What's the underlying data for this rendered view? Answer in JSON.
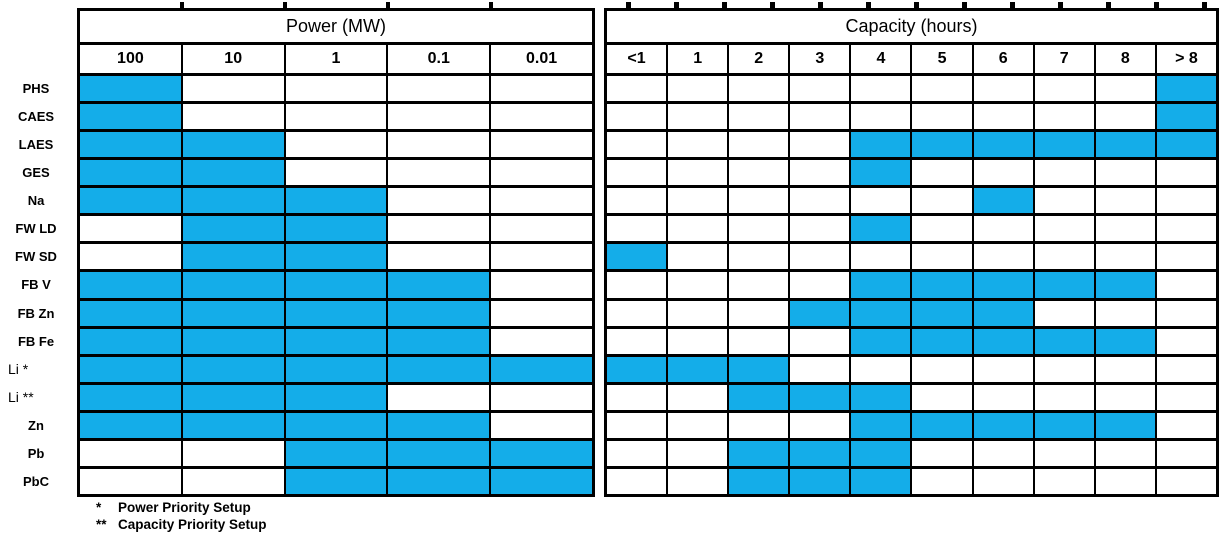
{
  "figure": {
    "colors": {
      "fill": "#14ade9",
      "line": "#000000",
      "background": "#ffffff"
    },
    "footnotes": [
      {
        "marker": "*",
        "text": "Power Priority Setup"
      },
      {
        "marker": "**",
        "text": "Capacity Priority Setup"
      }
    ]
  },
  "chart_data": {
    "type": "heatmap",
    "description": "Applicability matrix of energy storage technologies: filled (blue) cells mark the power ratings and storage durations each technology covers.",
    "column_groups": [
      {
        "title": "Power (MW)",
        "columns": [
          "100",
          "10",
          "1",
          "0.1",
          "0.01"
        ]
      },
      {
        "title": "Capacity (hours)",
        "columns": [
          "<1",
          "1",
          "2",
          "3",
          "4",
          "5",
          "6",
          "7",
          "8",
          "> 8"
        ]
      }
    ],
    "rows": [
      {
        "label": "PHS",
        "power": [
          1,
          0,
          0,
          0,
          0
        ],
        "capacity": [
          0,
          0,
          0,
          0,
          0,
          0,
          0,
          0,
          0,
          1
        ]
      },
      {
        "label": "CAES",
        "power": [
          1,
          0,
          0,
          0,
          0
        ],
        "capacity": [
          0,
          0,
          0,
          0,
          0,
          0,
          0,
          0,
          0,
          1
        ]
      },
      {
        "label": "LAES",
        "power": [
          1,
          1,
          0,
          0,
          0
        ],
        "capacity": [
          0,
          0,
          0,
          0,
          1,
          1,
          1,
          1,
          1,
          1
        ]
      },
      {
        "label": "GES",
        "power": [
          1,
          1,
          0,
          0,
          0
        ],
        "capacity": [
          0,
          0,
          0,
          0,
          1,
          0,
          0,
          0,
          0,
          0
        ]
      },
      {
        "label": "Na",
        "power": [
          1,
          1,
          1,
          0,
          0
        ],
        "capacity": [
          0,
          0,
          0,
          0,
          0,
          0,
          1,
          0,
          0,
          0
        ]
      },
      {
        "label": "FW LD",
        "power": [
          0,
          1,
          1,
          0,
          0
        ],
        "capacity": [
          0,
          0,
          0,
          0,
          1,
          0,
          0,
          0,
          0,
          0
        ]
      },
      {
        "label": "FW SD",
        "power": [
          0,
          1,
          1,
          0,
          0
        ],
        "capacity": [
          1,
          0,
          0,
          0,
          0,
          0,
          0,
          0,
          0,
          0
        ]
      },
      {
        "label": "FB V",
        "power": [
          1,
          1,
          1,
          1,
          0
        ],
        "capacity": [
          0,
          0,
          0,
          0,
          1,
          1,
          1,
          1,
          1,
          0
        ]
      },
      {
        "label": "FB Zn",
        "power": [
          1,
          1,
          1,
          1,
          0
        ],
        "capacity": [
          0,
          0,
          0,
          1,
          1,
          1,
          1,
          0,
          0,
          0
        ]
      },
      {
        "label": "FB Fe",
        "power": [
          1,
          1,
          1,
          1,
          0
        ],
        "capacity": [
          0,
          0,
          0,
          0,
          1,
          1,
          1,
          1,
          1,
          0
        ]
      },
      {
        "label": "Li *",
        "power": [
          1,
          1,
          1,
          1,
          1
        ],
        "capacity": [
          1,
          1,
          1,
          0,
          0,
          0,
          0,
          0,
          0,
          0
        ],
        "label_align": "left"
      },
      {
        "label": "Li **",
        "power": [
          1,
          1,
          1,
          0,
          0
        ],
        "capacity": [
          0,
          0,
          1,
          1,
          1,
          0,
          0,
          0,
          0,
          0
        ],
        "label_align": "left"
      },
      {
        "label": "Zn",
        "power": [
          1,
          1,
          1,
          1,
          0
        ],
        "capacity": [
          0,
          0,
          0,
          0,
          1,
          1,
          1,
          1,
          1,
          0
        ]
      },
      {
        "label": "Pb",
        "power": [
          0,
          0,
          1,
          1,
          1
        ],
        "capacity": [
          0,
          0,
          1,
          1,
          1,
          0,
          0,
          0,
          0,
          0
        ]
      },
      {
        "label": "PbC",
        "power": [
          0,
          0,
          1,
          1,
          1
        ],
        "capacity": [
          0,
          0,
          1,
          1,
          1,
          0,
          0,
          0,
          0,
          0
        ]
      }
    ]
  }
}
